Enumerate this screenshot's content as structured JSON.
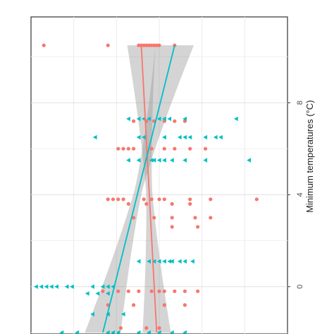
{
  "chart_data": {
    "type": "scatter",
    "orientation": "rotated-90-clockwise",
    "title": "",
    "axis_label": "Minimum temperatures (°C)",
    "ticks": [
      0,
      4,
      8
    ],
    "range": [
      -2,
      11
    ],
    "grid": true,
    "legend": "none",
    "series": [
      {
        "color": "#f8766d",
        "marker": "circle",
        "points": [
          [
            10.5,
            0.05
          ],
          [
            10.5,
            0.3
          ],
          [
            10.5,
            0.42
          ],
          [
            10.5,
            0.43
          ],
          [
            10.5,
            0.44
          ],
          [
            10.5,
            0.45
          ],
          [
            10.5,
            0.46
          ],
          [
            10.5,
            0.47
          ],
          [
            10.5,
            0.48
          ],
          [
            10.5,
            0.49
          ],
          [
            10.5,
            0.5
          ],
          [
            10.5,
            0.56
          ],
          [
            7.2,
            0.4
          ],
          [
            7.2,
            0.45
          ],
          [
            7.2,
            0.48
          ],
          [
            7.2,
            0.52
          ],
          [
            7.2,
            0.56
          ],
          [
            7.2,
            0.6
          ],
          [
            6.0,
            0.34
          ],
          [
            6.0,
            0.36
          ],
          [
            6.0,
            0.38
          ],
          [
            6.0,
            0.4
          ],
          [
            6.0,
            0.47
          ],
          [
            6.0,
            0.52
          ],
          [
            6.0,
            0.56
          ],
          [
            6.0,
            0.62
          ],
          [
            6.0,
            0.68
          ],
          [
            3.8,
            0.3
          ],
          [
            3.8,
            0.32
          ],
          [
            3.8,
            0.34
          ],
          [
            3.8,
            0.36
          ],
          [
            3.8,
            0.44
          ],
          [
            3.8,
            0.47
          ],
          [
            3.8,
            0.5
          ],
          [
            3.8,
            0.52
          ],
          [
            3.8,
            0.62
          ],
          [
            3.8,
            0.7
          ],
          [
            3.8,
            0.88
          ],
          [
            3.6,
            0.38
          ],
          [
            3.6,
            0.45
          ],
          [
            3.6,
            0.55
          ],
          [
            3.6,
            0.62
          ],
          [
            3.0,
            0.4
          ],
          [
            3.0,
            0.48
          ],
          [
            3.0,
            0.55
          ],
          [
            3.0,
            0.64
          ],
          [
            3.0,
            0.7
          ],
          [
            2.6,
            0.55
          ],
          [
            2.6,
            0.65
          ],
          [
            -0.2,
            0.28
          ],
          [
            -0.2,
            0.34
          ],
          [
            -0.2,
            0.38
          ],
          [
            -0.2,
            0.42
          ],
          [
            -0.2,
            0.47
          ],
          [
            -0.2,
            0.5
          ],
          [
            -0.2,
            0.52
          ],
          [
            -0.2,
            0.56
          ],
          [
            -0.2,
            0.6
          ],
          [
            -0.2,
            0.65
          ],
          [
            -0.8,
            0.3
          ],
          [
            -0.8,
            0.4
          ],
          [
            -0.8,
            0.52
          ],
          [
            -0.8,
            0.6
          ],
          [
            -1.8,
            0.35
          ],
          [
            -1.8,
            0.45
          ],
          [
            -1.8,
            0.5
          ]
        ]
      },
      {
        "color": "#00bfc4",
        "marker": "triangle",
        "points": [
          [
            7.3,
            0.38
          ],
          [
            7.3,
            0.42
          ],
          [
            7.3,
            0.44
          ],
          [
            7.3,
            0.46
          ],
          [
            7.3,
            0.5
          ],
          [
            7.3,
            0.52
          ],
          [
            7.3,
            0.54
          ],
          [
            7.3,
            0.6
          ],
          [
            7.3,
            0.8
          ],
          [
            6.5,
            0.25
          ],
          [
            6.5,
            0.42
          ],
          [
            6.5,
            0.44
          ],
          [
            6.5,
            0.52
          ],
          [
            6.5,
            0.58
          ],
          [
            6.5,
            0.6
          ],
          [
            6.5,
            0.62
          ],
          [
            6.5,
            0.68
          ],
          [
            6.5,
            0.72
          ],
          [
            6.5,
            0.74
          ],
          [
            5.5,
            0.38
          ],
          [
            5.5,
            0.42
          ],
          [
            5.5,
            0.47
          ],
          [
            5.5,
            0.48
          ],
          [
            5.5,
            0.5
          ],
          [
            5.5,
            0.52
          ],
          [
            5.5,
            0.55
          ],
          [
            5.5,
            0.6
          ],
          [
            5.5,
            0.68
          ],
          [
            5.5,
            0.85
          ],
          [
            1.1,
            0.42
          ],
          [
            1.1,
            0.46
          ],
          [
            1.1,
            0.48
          ],
          [
            1.1,
            0.5
          ],
          [
            1.1,
            0.52
          ],
          [
            1.1,
            0.54
          ],
          [
            1.1,
            0.55
          ],
          [
            1.1,
            0.58
          ],
          [
            1.1,
            0.6
          ],
          [
            1.1,
            0.63
          ],
          [
            0.0,
            0.02
          ],
          [
            0.0,
            0.04
          ],
          [
            0.0,
            0.06
          ],
          [
            0.0,
            0.08
          ],
          [
            0.0,
            0.1
          ],
          [
            0.0,
            0.14
          ],
          [
            0.0,
            0.16
          ],
          [
            0.0,
            0.24
          ],
          [
            0.0,
            0.28
          ],
          [
            0.0,
            0.3
          ],
          [
            0.0,
            0.32
          ],
          [
            -0.3,
            0.22
          ],
          [
            -0.3,
            0.26
          ],
          [
            -0.3,
            0.3
          ],
          [
            -1.2,
            0.24
          ],
          [
            -1.2,
            0.3
          ],
          [
            -1.2,
            0.36
          ],
          [
            -2.0,
            0.12
          ],
          [
            -2.0,
            0.18
          ],
          [
            -2.0,
            0.3
          ],
          [
            -2.0,
            0.32
          ],
          [
            -2.0,
            0.34
          ],
          [
            -2.0,
            0.42
          ],
          [
            -2.0,
            0.46
          ],
          [
            -2.0,
            0.5
          ],
          [
            -2.0,
            0.55
          ],
          [
            -2.0,
            0.6
          ]
        ]
      }
    ],
    "fits": [
      {
        "color": "#f8766d",
        "from": [
          -2,
          0.49
        ],
        "to": [
          10.5,
          0.43
        ],
        "band_halfwidth_ends": [
          0.055,
          0.055
        ],
        "band_halfwidth_mid": 0.012
      },
      {
        "color": "#00bfc4",
        "from": [
          -2,
          0.28
        ],
        "to": [
          10.5,
          0.56
        ],
        "band_halfwidth_ends": [
          0.07,
          0.075
        ],
        "band_halfwidth_mid": 0.015
      }
    ]
  }
}
